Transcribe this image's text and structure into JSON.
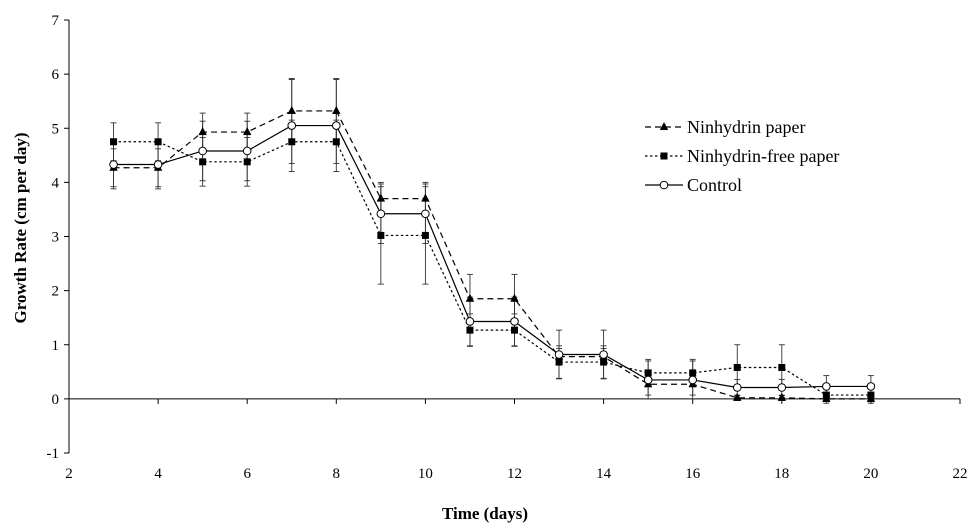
{
  "chart_data": {
    "type": "line",
    "title": "",
    "xlabel": "Time (days)",
    "ylabel": "Growth  Rate (cm per day)",
    "xlim": [
      2,
      22
    ],
    "ylim": [
      -1,
      7
    ],
    "xticks": [
      2,
      4,
      6,
      8,
      10,
      12,
      14,
      16,
      18,
      20,
      22
    ],
    "yticks": [
      -1,
      0,
      1,
      2,
      3,
      4,
      5,
      6,
      7
    ],
    "grid": false,
    "legend_position": "right",
    "series": [
      {
        "name": "Ninhydrin paper",
        "marker": "triangle",
        "line_style": "dashed",
        "color": "#000000",
        "x": [
          3,
          4,
          5,
          6,
          7,
          8,
          9,
          10,
          11,
          12,
          13,
          14,
          15,
          16,
          17,
          18,
          19,
          20
        ],
        "y": [
          4.27,
          4.27,
          4.93,
          4.93,
          5.32,
          5.32,
          3.7,
          3.7,
          1.85,
          1.85,
          0.78,
          0.78,
          0.27,
          0.27,
          0.02,
          0.02,
          0.0,
          0.0
        ],
        "err": [
          0.35,
          0.35,
          0.35,
          0.35,
          0.6,
          0.6,
          0.3,
          0.3,
          0.45,
          0.45,
          0.15,
          0.15,
          0.2,
          0.2,
          0.05,
          0.05,
          0.05,
          0.05
        ]
      },
      {
        "name": "Ninhydrin-free paper",
        "marker": "square",
        "line_style": "dotted",
        "color": "#000000",
        "x": [
          3,
          4,
          5,
          6,
          7,
          8,
          9,
          10,
          11,
          12,
          13,
          14,
          15,
          16,
          17,
          18,
          19,
          20
        ],
        "y": [
          4.75,
          4.75,
          4.38,
          4.38,
          4.75,
          4.75,
          3.02,
          3.02,
          1.27,
          1.27,
          0.68,
          0.68,
          0.48,
          0.48,
          0.58,
          0.58,
          0.07,
          0.07
        ],
        "err": [
          0.35,
          0.35,
          0.45,
          0.45,
          0.4,
          0.4,
          0.9,
          0.9,
          0.3,
          0.3,
          0.3,
          0.3,
          0.25,
          0.25,
          0.42,
          0.42,
          0.15,
          0.15
        ]
      },
      {
        "name": "Control",
        "marker": "circle-open",
        "line_style": "solid",
        "color": "#000000",
        "x": [
          3,
          4,
          5,
          6,
          7,
          8,
          9,
          10,
          11,
          12,
          13,
          14,
          15,
          16,
          17,
          18,
          19,
          20
        ],
        "y": [
          4.33,
          4.33,
          4.58,
          4.58,
          5.05,
          5.05,
          3.42,
          3.42,
          1.43,
          1.43,
          0.82,
          0.82,
          0.35,
          0.35,
          0.21,
          0.21,
          0.23,
          0.23
        ],
        "err": [
          0.45,
          0.45,
          0.55,
          0.55,
          0.85,
          0.85,
          0.55,
          0.55,
          0.45,
          0.45,
          0.45,
          0.45,
          0.35,
          0.35,
          0.15,
          0.15,
          0.2,
          0.2
        ]
      }
    ]
  }
}
